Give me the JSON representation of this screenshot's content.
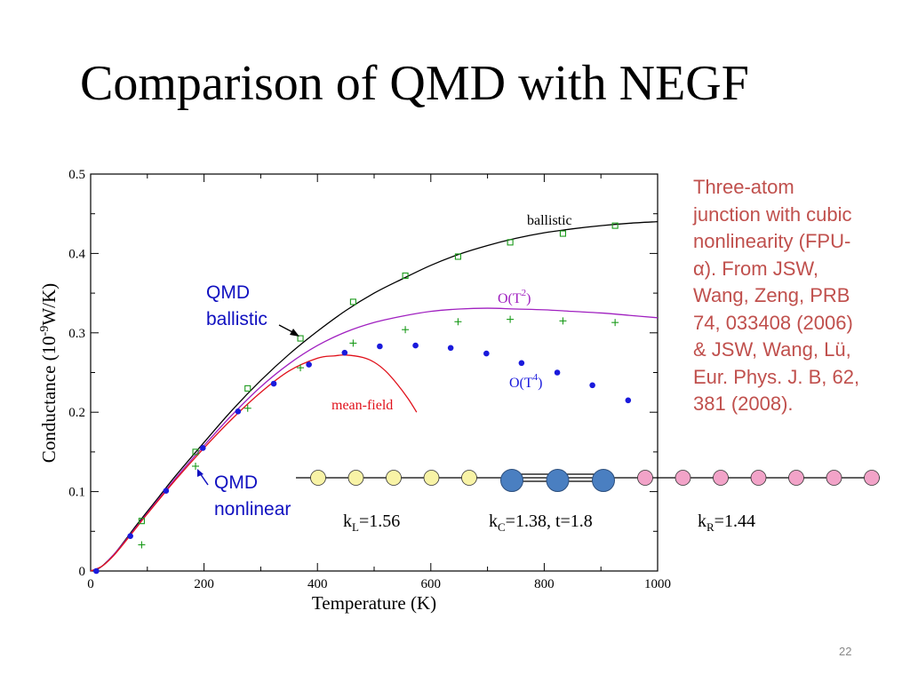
{
  "slide": {
    "title": "Comparison of QMD with NEGF",
    "note_lines": [
      "Three-atom",
      "junction with cubic",
      "nonlinearity (FPU-",
      "α).  From JSW,",
      "Wang, Zeng, PRB",
      "74, 033408 (2006)",
      "& JSW, Wang, Lü,",
      "Eur. Phys. J. B, 62,",
      "381 (2008)."
    ],
    "page_number": "22"
  },
  "colors": {
    "ballistic": "#000000",
    "mean_field": "#e0101a",
    "o_t2": "#a020c0",
    "qmd_nonlinear_points": "#1a1adc",
    "plus_points": "#1a9a1a",
    "square_points": "#1a9a1a",
    "label_blue": "#1010c0",
    "note": "#c0504d",
    "atom_left": "#f8f3a6",
    "atom_center": "#4a7fc1",
    "atom_right": "#f2a3c8"
  },
  "chart_data": {
    "type": "line",
    "xlabel": "Temperature (K)",
    "ylabel_parts": {
      "base": "Conductance (10",
      "sup": "-9",
      "tail": "W/K)"
    },
    "xlim": [
      0,
      1000
    ],
    "ylim": [
      0,
      0.5
    ],
    "xticks": [
      "0",
      "200",
      "400",
      "600",
      "800",
      "1000"
    ],
    "yticks": [
      "0",
      "0.1",
      "0.2",
      "0.3",
      "0.4",
      "0.5"
    ],
    "series": [
      {
        "name": "ballistic",
        "style": "line",
        "x": [
          0,
          10,
          20,
          40,
          60,
          80,
          100,
          120,
          150,
          200,
          250,
          300,
          350,
          400,
          450,
          500,
          550,
          600,
          650,
          700,
          750,
          800,
          850,
          900,
          950,
          1000
        ],
        "y": [
          0,
          0.002,
          0.006,
          0.02,
          0.038,
          0.057,
          0.075,
          0.093,
          0.12,
          0.162,
          0.203,
          0.24,
          0.273,
          0.302,
          0.328,
          0.35,
          0.368,
          0.385,
          0.399,
          0.41,
          0.419,
          0.426,
          0.431,
          0.435,
          0.438,
          0.44
        ]
      },
      {
        "name": "O(T2)",
        "style": "line",
        "x": [
          0,
          20,
          40,
          60,
          80,
          100,
          150,
          200,
          250,
          300,
          350,
          400,
          450,
          500,
          550,
          600,
          650,
          700,
          750,
          800,
          850,
          900,
          950,
          1000
        ],
        "y": [
          0,
          0.006,
          0.02,
          0.037,
          0.055,
          0.073,
          0.117,
          0.158,
          0.197,
          0.232,
          0.261,
          0.284,
          0.301,
          0.313,
          0.321,
          0.327,
          0.33,
          0.331,
          0.33,
          0.329,
          0.327,
          0.325,
          0.322,
          0.319
        ]
      },
      {
        "name": "mean-field",
        "style": "line",
        "x": [
          0,
          20,
          40,
          60,
          80,
          100,
          150,
          200,
          250,
          300,
          350,
          400,
          430,
          450,
          480,
          500,
          520,
          540,
          560,
          575
        ],
        "y": [
          0,
          0.006,
          0.019,
          0.036,
          0.054,
          0.072,
          0.115,
          0.155,
          0.192,
          0.225,
          0.252,
          0.268,
          0.271,
          0.272,
          0.269,
          0.263,
          0.252,
          0.236,
          0.217,
          0.2
        ]
      },
      {
        "name": "QMD ballistic",
        "style": "square",
        "x": [
          90,
          185,
          277,
          370,
          463,
          555,
          648,
          740,
          833,
          925
        ],
        "y": [
          0.063,
          0.15,
          0.23,
          0.293,
          0.339,
          0.372,
          0.396,
          0.414,
          0.425,
          0.435
        ]
      },
      {
        "name": "QMD nonlinear (plus)",
        "style": "plus",
        "x": [
          90,
          185,
          277,
          370,
          463,
          555,
          648,
          740,
          833,
          925
        ],
        "y": [
          0.033,
          0.132,
          0.205,
          0.256,
          0.287,
          0.304,
          0.314,
          0.317,
          0.315,
          0.313
        ]
      },
      {
        "name": "O(T4)",
        "style": "dot",
        "x": [
          10,
          70,
          133,
          198,
          260,
          323,
          385,
          448,
          510,
          573,
          635,
          698,
          760,
          823,
          885,
          948
        ],
        "y": [
          0,
          0.044,
          0.101,
          0.155,
          0.201,
          0.236,
          0.26,
          0.275,
          0.283,
          0.284,
          0.281,
          0.274,
          0.262,
          0.25,
          0.234,
          0.215
        ]
      }
    ],
    "annotations": {
      "ballistic": "ballistic",
      "o_t2": {
        "base": "O(T",
        "sup": "2",
        "tail": ")"
      },
      "o_t4": {
        "base": "O(T",
        "sup": "4",
        "tail": ")"
      },
      "mean_field": "mean-field",
      "qmd_ballistic": [
        "QMD",
        "ballistic"
      ],
      "qmd_nonlinear": [
        "QMD",
        "nonlinear"
      ]
    }
  },
  "chain": {
    "labels": {
      "kL": {
        "base": "k",
        "sub": "L",
        "tail": "=1.56"
      },
      "kC": {
        "base": "k",
        "sub": "C",
        "tail": "=1.38, t=1.8"
      },
      "kR": {
        "base": "k",
        "sub": "R",
        "tail": "=1.44"
      }
    },
    "left_atoms": 5,
    "center_atoms": 3,
    "right_atoms": 7
  }
}
